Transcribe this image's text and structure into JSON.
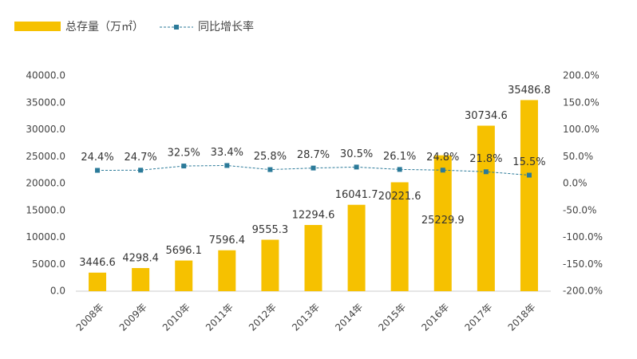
{
  "chart_data": {
    "type": "bar",
    "categories": [
      "2008年",
      "2009年",
      "2010年",
      "2011年",
      "2012年",
      "2013年",
      "2014年",
      "2015年",
      "2016年",
      "2017年",
      "2018年"
    ],
    "series": [
      {
        "name": "总存量（万㎡）",
        "type": "bar",
        "color": "#f6c100",
        "values": [
          3446.6,
          4298.4,
          5696.1,
          7596.4,
          9555.3,
          12294.6,
          16041.7,
          20221.6,
          25229.9,
          30734.6,
          35486.8
        ]
      },
      {
        "name": "同比增长率",
        "type": "line",
        "axis": "y2",
        "color": "#2b7a99",
        "values": [
          24.4,
          24.7,
          32.5,
          33.4,
          25.8,
          28.7,
          30.5,
          26.1,
          24.8,
          21.8,
          15.5
        ],
        "value_labels": [
          "24.4%",
          "24.7%",
          "32.5%",
          "33.4%",
          "25.8%",
          "28.7%",
          "30.5%",
          "26.1%",
          "24.8%",
          "21.8%",
          "15.5%"
        ]
      }
    ],
    "ylim": [
      0,
      40000
    ],
    "yticks": [
      {
        "value": 0,
        "label": "0.0"
      },
      {
        "value": 5000,
        "label": "5000.0"
      },
      {
        "value": 10000,
        "label": "10000.0"
      },
      {
        "value": 15000,
        "label": "15000.0"
      },
      {
        "value": 20000,
        "label": "20000.0"
      },
      {
        "value": 25000,
        "label": "25000.0"
      },
      {
        "value": 30000,
        "label": "30000.0"
      },
      {
        "value": 35000,
        "label": "35000.0"
      },
      {
        "value": 40000,
        "label": "40000.0"
      }
    ],
    "y2lim": [
      -200,
      200
    ],
    "y2ticks": [
      {
        "value": -200,
        "label": "-200.0%"
      },
      {
        "value": -150,
        "label": "-150.0%"
      },
      {
        "value": -100,
        "label": "-100.0%"
      },
      {
        "value": -50,
        "label": "-50.0%"
      },
      {
        "value": 0,
        "label": "0.0%"
      },
      {
        "value": 50,
        "label": "50.0%"
      },
      {
        "value": 100,
        "label": "100.0%"
      },
      {
        "value": 150,
        "label": "150.0%"
      },
      {
        "value": 200,
        "label": "200.0%"
      }
    ]
  }
}
